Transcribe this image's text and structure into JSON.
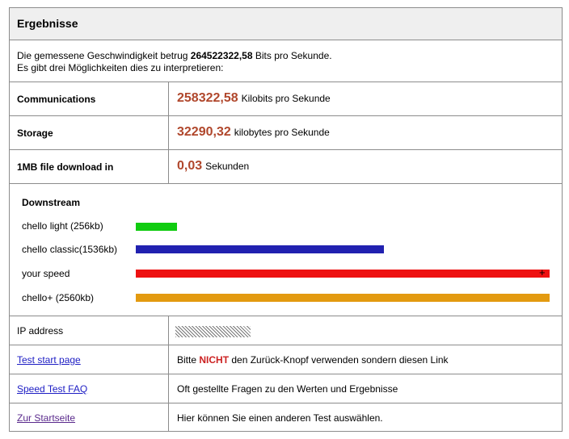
{
  "header": {
    "title": "Ergebnisse"
  },
  "intro": {
    "line1_pre": "Die gemessene Geschwindigkeit betrug ",
    "line1_value": "264522322,58",
    "line1_post": " Bits pro Sekunde.",
    "line2": "Es gibt drei Möglichkeiten dies zu interpretieren:"
  },
  "results": [
    {
      "label": "Communications",
      "value": "258322,58",
      "unit": "Kilobits pro Sekunde"
    },
    {
      "label": "Storage",
      "value": "32290,32",
      "unit": "kilobytes pro Sekunde"
    },
    {
      "label": "1MB file download in",
      "value": "0,03",
      "unit": "Sekunden"
    }
  ],
  "downstream": {
    "title": "Downstream",
    "bars": [
      {
        "label": "chello light (256kb)",
        "fraction": 0.1,
        "color": "#10cc10"
      },
      {
        "label": "chello classic(1536kb)",
        "fraction": 0.6,
        "color": "#2121b0"
      },
      {
        "label": "your speed",
        "fraction": 1.0,
        "color": "#ee1111",
        "overflow_marker": "+"
      },
      {
        "label": "chello+ (2560kb)",
        "fraction": 1.0,
        "color": "#e39a10"
      }
    ]
  },
  "ip": {
    "label": "IP address"
  },
  "links": [
    {
      "label": "Test start page",
      "text_pre": "Bitte ",
      "text_emph": "NICHT",
      "text_post": " den Zurück-Knopf verwenden sondern diesen Link"
    },
    {
      "label": "Speed Test FAQ",
      "text": "Oft gestellte Fragen zu den Werten und Ergebnisse"
    },
    {
      "label": "Zur Startseite",
      "text": "Hier können Sie einen anderen Test auswählen."
    }
  ]
}
